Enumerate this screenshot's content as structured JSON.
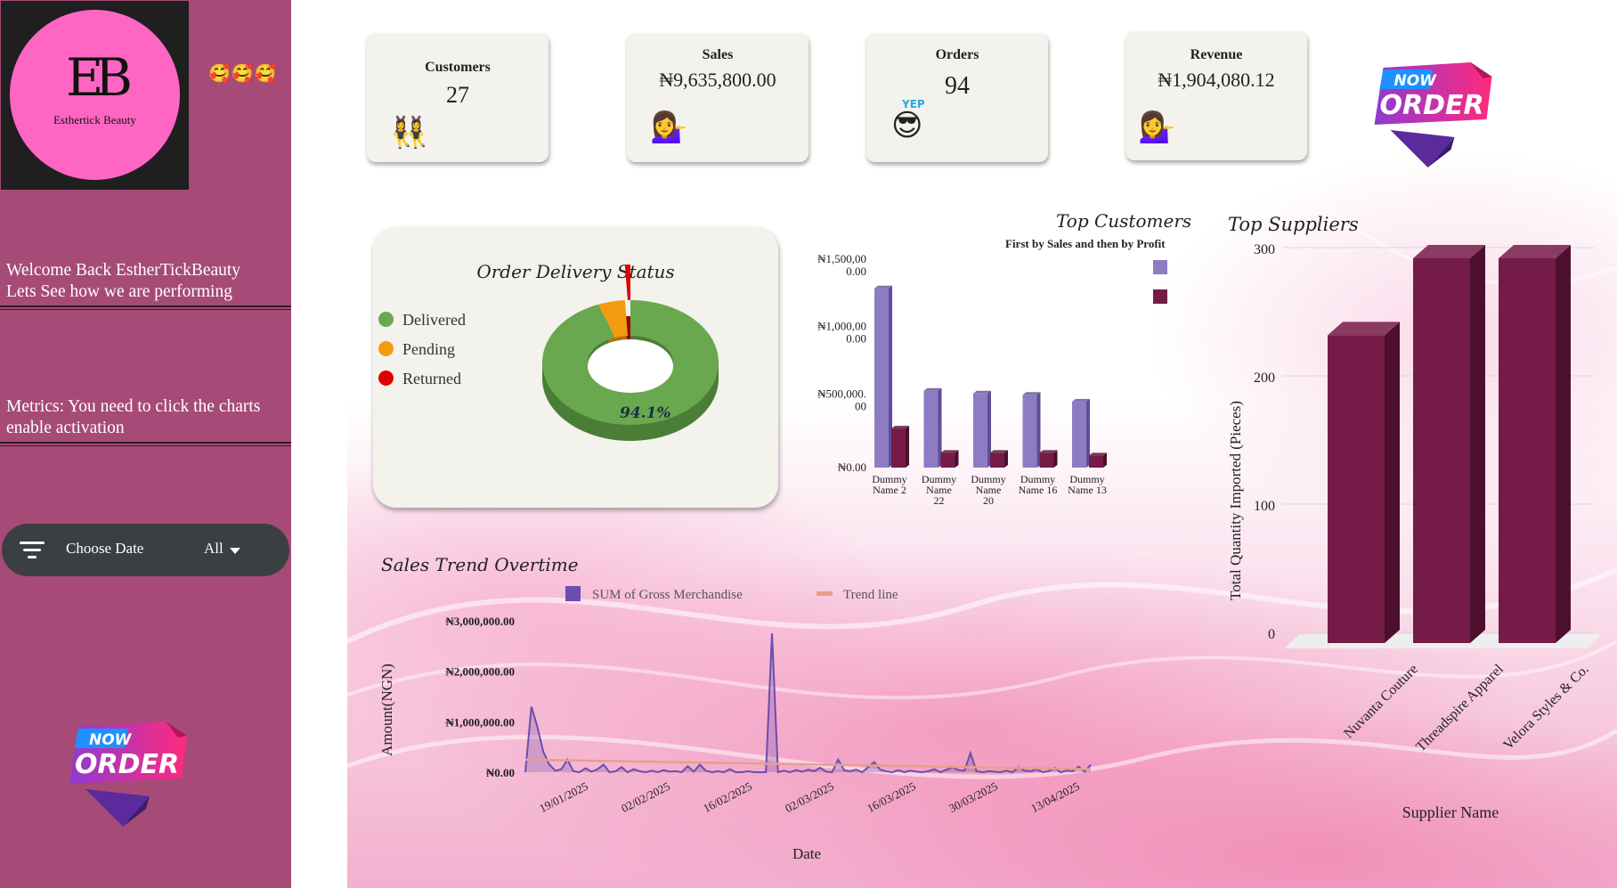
{
  "sidebar": {
    "logo": {
      "mark": "EB",
      "brand": "Esthertick Beauty"
    },
    "emojis": "🥰🥰🥰",
    "welcome_line1": "Welcome Back EstherTickBeauty",
    "welcome_line2": "Lets See how we are performing",
    "metrics_line1": "Metrics: You need to click the charts",
    "metrics_line2": "enable activation",
    "filter": {
      "label": "Choose Date",
      "value": "All"
    },
    "badge": {
      "now": "NOW",
      "order": "ORDER"
    }
  },
  "kpis": [
    {
      "title": "Customers",
      "value": "27",
      "emoji": "👯‍♀️"
    },
    {
      "title": "Sales",
      "value": "₦9,635,800.00",
      "emoji": "💁‍♀️"
    },
    {
      "title": "Orders",
      "value": "94",
      "emoji": "😎",
      "emoji_caption": "YEP"
    },
    {
      "title": "Revenue",
      "value": "₦1,904,080.12",
      "emoji": "💁‍♀️"
    }
  ],
  "top_badge": {
    "now": "NOW",
    "order": "ORDER"
  },
  "colors": {
    "sidebar": "#a64b78",
    "delivered": "#6aa84f",
    "pending": "#f39c12",
    "returned": "#e00000",
    "sales_bar": "#8e7cc3",
    "profit_bar": "#741b47",
    "supplier_bar": "#741b47",
    "trend_area": "#6b4eb0",
    "trend_line": "#e6a08a"
  },
  "chart_data": [
    {
      "type": "pie",
      "title": "Order Delivery Status",
      "labels": [
        "Delivered",
        "Pending",
        "Returned"
      ],
      "values": [
        94.1,
        4.9,
        1.0
      ],
      "data_label": "94.1%"
    },
    {
      "type": "bar",
      "title": "Top Customers",
      "subtitle": "First by Sales and then by Profit",
      "categories": [
        "Dummy Name 2",
        "Dummy Name 22",
        "Dummy Name 20",
        "Dummy Name 16",
        "Dummy Name 13"
      ],
      "category_lines": [
        [
          "Dummy",
          "Name 2"
        ],
        [
          "Dummy",
          "Name",
          "22"
        ],
        [
          "Dummy",
          "Name",
          "20"
        ],
        [
          "Dummy",
          "Name 16"
        ],
        [
          "Dummy",
          "Name 13"
        ]
      ],
      "series": [
        {
          "values": [
            1330000,
            570000,
            550000,
            540000,
            490000
          ]
        },
        {
          "values": [
            290000,
            110000,
            110000,
            110000,
            90000
          ]
        }
      ],
      "yticks": [
        [
          "₦0.00"
        ],
        [
          "₦500,000.",
          "00"
        ],
        [
          "₦1,000,00",
          "0.00"
        ],
        [
          "₦1,500,00",
          "0.00"
        ]
      ],
      "ytick_values": [
        0,
        500000,
        1000000,
        1500000
      ],
      "ylim": [
        0,
        1500000
      ]
    },
    {
      "type": "bar",
      "title": "Top Suppliers",
      "categories": [
        "Nuvanta Couture",
        "Threadspire Apparel",
        "Velora Styles & Co."
      ],
      "values": [
        240,
        300,
        300
      ],
      "xlabel": "Supplier Name",
      "ylabel": "Total Quantity Imported (Pieces)",
      "yticks": [
        "0",
        "100",
        "200",
        "300"
      ],
      "ytick_values": [
        0,
        100,
        200,
        300
      ],
      "ylim": [
        0,
        300
      ]
    },
    {
      "type": "area",
      "title": "Sales Trend Overtime",
      "legend": [
        "SUM of Gross Merchandise",
        "Trend line"
      ],
      "xlabel": "Date",
      "ylabel": "Amount(NGN)",
      "xticks": [
        "19/01/2025",
        "02/02/2025",
        "16/02/2025",
        "02/03/2025",
        "16/03/2025",
        "30/03/2025",
        "13/04/2025"
      ],
      "yticks": [
        "₦0.00",
        "₦1,000,000.00",
        "₦2,000,000.00",
        "₦3,000,000.00"
      ],
      "ytick_values": [
        0,
        1000000,
        2000000,
        3000000
      ],
      "ylim": [
        0,
        3000000
      ],
      "values": [
        0,
        1300000,
        900000,
        400000,
        150000,
        30000,
        60000,
        250000,
        20000,
        0,
        80000,
        10000,
        60000,
        150000,
        0,
        20000,
        100000,
        0,
        60000,
        20000,
        0,
        30000,
        0,
        40000,
        10000,
        20000,
        0,
        120000,
        10000,
        150000,
        30000,
        0,
        20000,
        0,
        60000,
        0,
        0,
        20000,
        0,
        0,
        0,
        2750000,
        0,
        30000,
        0,
        40000,
        10000,
        50000,
        20000,
        90000,
        10000,
        0,
        250000,
        40000,
        20000,
        50000,
        0,
        100000,
        200000,
        50000,
        20000,
        0,
        40000,
        0,
        30000,
        10000,
        0,
        20000,
        60000,
        0,
        50000,
        100000,
        40000,
        30000,
        380000,
        20000,
        0,
        20000,
        10000,
        0,
        30000,
        0,
        100000,
        30000,
        20000,
        60000,
        0,
        20000,
        90000,
        0,
        30000,
        20000,
        110000,
        10000,
        150000
      ],
      "trend": [
        250000,
        60000
      ]
    }
  ]
}
